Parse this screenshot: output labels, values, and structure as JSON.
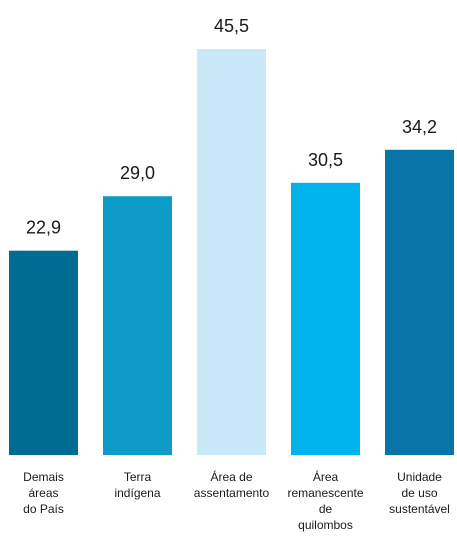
{
  "chart_data": {
    "type": "bar",
    "title": "",
    "xlabel": "",
    "ylabel": "",
    "ylim": [
      0,
      45.5
    ],
    "grid": false,
    "legend": "none",
    "categories": [
      [
        "Demais",
        "áreas",
        "do País"
      ],
      [
        "Terra",
        "indígena"
      ],
      [
        "Área de",
        "assentamento"
      ],
      [
        "Área",
        "remanescente",
        "de",
        "quilombos"
      ],
      [
        "Unidade",
        "de uso",
        "sustentável"
      ]
    ],
    "values": [
      22.9,
      29.0,
      45.5,
      30.5,
      34.2
    ],
    "value_labels": [
      "22,9",
      "29,0",
      "45,5",
      "30,5",
      "34,2"
    ],
    "colors": [
      "#006C94",
      "#0F9BC7",
      "#C9E9F8",
      "#00B3EC",
      "#0775A8"
    ]
  }
}
